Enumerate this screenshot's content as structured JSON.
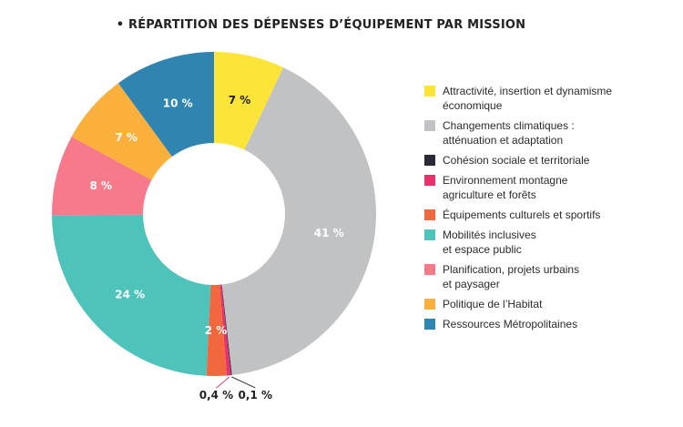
{
  "chart_data": {
    "type": "pie",
    "title": "• RÉPARTITION DES DÉPENSES D’ÉQUIPEMENT PAR MISSION",
    "donut": true,
    "legend_position": "right",
    "slices": [
      {
        "label": "Attractivité, insertion et dynamisme\néconomique",
        "value": 7,
        "value_label": "7 %",
        "color": "#FCE538"
      },
      {
        "label": "Changements climatiques :\natténuation et adaptation",
        "value": 41,
        "value_label": "41 %",
        "color": "#C1C2C3"
      },
      {
        "label": "Cohésion sociale et territoriale",
        "value": 0.1,
        "value_label": "0,1 %",
        "color": "#2B2A33"
      },
      {
        "label": "Environnement montagne\nagriculture et forêts",
        "value": 0.4,
        "value_label": "0,4 %",
        "color": "#E8316D"
      },
      {
        "label": "Équipements culturels et sportifs",
        "value": 2,
        "value_label": "2 %",
        "color": "#F1683F"
      },
      {
        "label": "Mobilités inclusives\net espace public",
        "value": 24,
        "value_label": "24 %",
        "color": "#4EC3B9"
      },
      {
        "label": "Planification, projets urbains\net paysager",
        "value": 8,
        "value_label": "8 %",
        "color": "#F67A8A"
      },
      {
        "label": "Politique de l’Habitat",
        "value": 7,
        "value_label": "7 %",
        "color": "#FBB03B"
      },
      {
        "label": "Ressources Métropolitaines",
        "value": 10,
        "value_label": "10 %",
        "color": "#2F85B0"
      }
    ]
  }
}
